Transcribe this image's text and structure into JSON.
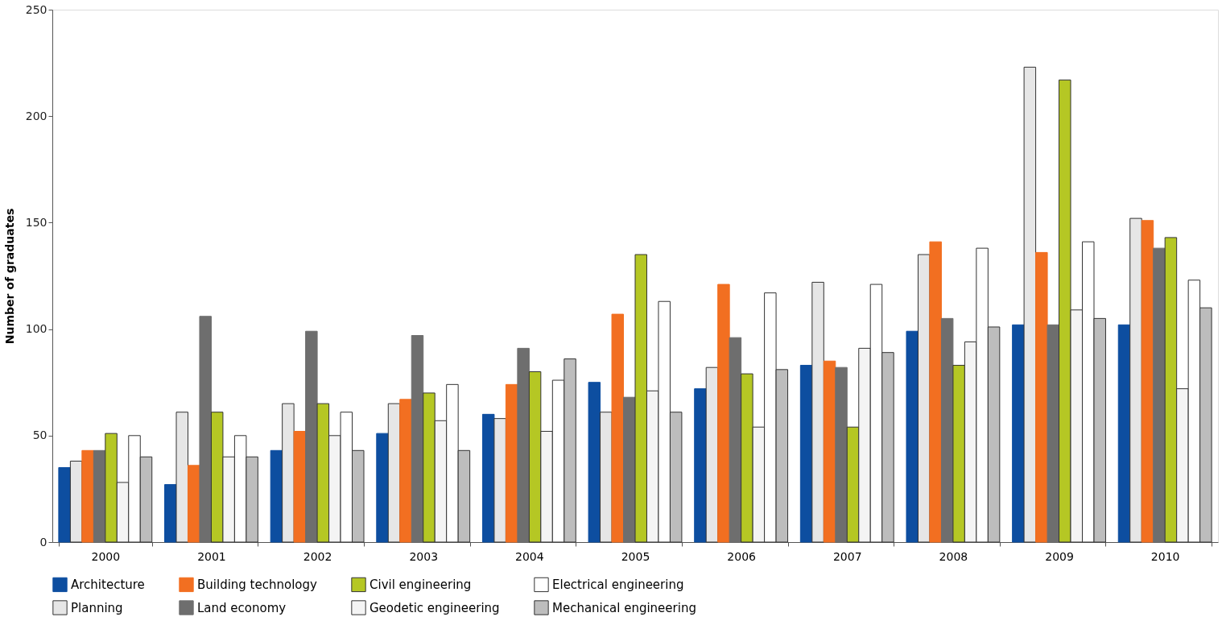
{
  "chart_data": {
    "type": "bar",
    "ylabel": "Number of graduates",
    "categories": [
      "2000",
      "2001",
      "2002",
      "2003",
      "2004",
      "2005",
      "2006",
      "2007",
      "2008",
      "2009",
      "2010"
    ],
    "series": [
      {
        "name": "Architecture",
        "color": "#0d4ea0",
        "values": [
          35,
          27,
          43,
          51,
          60,
          75,
          72,
          83,
          99,
          102,
          102
        ]
      },
      {
        "name": "Planning",
        "color": "#e6e6e6",
        "values": [
          38,
          61,
          65,
          65,
          58,
          61,
          82,
          122,
          135,
          223,
          152
        ]
      },
      {
        "name": "Building technology",
        "color": "#f26f21",
        "values": [
          43,
          36,
          52,
          67,
          74,
          107,
          121,
          85,
          141,
          136,
          151
        ]
      },
      {
        "name": "Land economy",
        "color": "#6e6e6e",
        "values": [
          43,
          106,
          99,
          97,
          91,
          68,
          96,
          82,
          105,
          102,
          138
        ]
      },
      {
        "name": "Civil engineering",
        "color": "#b5c724",
        "values": [
          51,
          61,
          65,
          70,
          80,
          135,
          79,
          54,
          83,
          217,
          143
        ]
      },
      {
        "name": "Geodetic engineering",
        "color": "#f4f4f4",
        "values": [
          28,
          40,
          50,
          57,
          52,
          71,
          54,
          91,
          94,
          109,
          72
        ]
      },
      {
        "name": "Electrical engineering",
        "color": "#ffffff",
        "values": [
          50,
          50,
          61,
          74,
          76,
          113,
          117,
          121,
          138,
          141,
          123
        ]
      },
      {
        "name": "Mechanical engineering",
        "color": "#bdbdbd",
        "values": [
          40,
          40,
          43,
          43,
          86,
          61,
          81,
          89,
          101,
          105,
          110
        ]
      }
    ],
    "ylim": [
      0,
      250
    ],
    "yticks": [
      0,
      50,
      100,
      150,
      200,
      250
    ],
    "grid": false,
    "legend": "bottom"
  }
}
